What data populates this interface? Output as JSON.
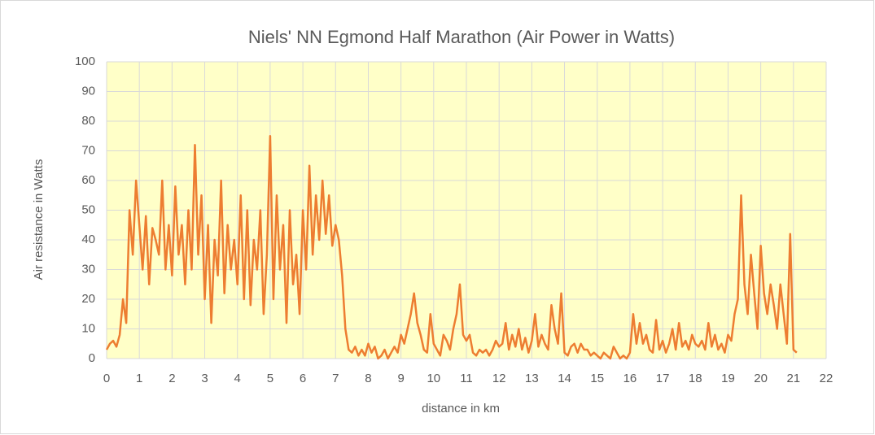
{
  "chart_data": {
    "type": "line",
    "title": "Niels' NN Egmond Half Marathon (Air Power in Watts)",
    "x_label": "distance in km",
    "y_label": "Air resistance in Watts",
    "xlim": [
      0,
      22
    ],
    "xticks": [
      0,
      1,
      2,
      3,
      4,
      5,
      6,
      7,
      8,
      9,
      10,
      11,
      12,
      13,
      14,
      15,
      16,
      17,
      18,
      19,
      20,
      21,
      22
    ],
    "ylim": [
      0,
      100
    ],
    "yticks": [
      0,
      10,
      20,
      30,
      40,
      50,
      60,
      70,
      80,
      90,
      100
    ],
    "grid": true,
    "x": [
      0,
      0.1,
      0.2,
      0.3,
      0.4,
      0.5,
      0.6,
      0.7,
      0.8,
      0.9,
      1,
      1.1,
      1.2,
      1.3,
      1.4,
      1.5,
      1.6,
      1.7,
      1.8,
      1.9,
      2,
      2.1,
      2.2,
      2.3,
      2.4,
      2.5,
      2.6,
      2.7,
      2.8,
      2.9,
      3,
      3.1,
      3.2,
      3.3,
      3.4,
      3.5,
      3.6,
      3.7,
      3.8,
      3.9,
      4,
      4.1,
      4.2,
      4.3,
      4.4,
      4.5,
      4.6,
      4.7,
      4.8,
      4.9,
      5,
      5.1,
      5.2,
      5.3,
      5.4,
      5.5,
      5.6,
      5.7,
      5.8,
      5.9,
      6,
      6.1,
      6.2,
      6.3,
      6.4,
      6.5,
      6.6,
      6.7,
      6.8,
      6.9,
      7,
      7.1,
      7.2,
      7.3,
      7.4,
      7.5,
      7.6,
      7.7,
      7.8,
      7.9,
      8,
      8.1,
      8.2,
      8.3,
      8.4,
      8.5,
      8.6,
      8.7,
      8.8,
      8.9,
      9,
      9.1,
      9.2,
      9.3,
      9.4,
      9.5,
      9.6,
      9.7,
      9.8,
      9.9,
      10,
      10.1,
      10.2,
      10.3,
      10.4,
      10.5,
      10.6,
      10.7,
      10.8,
      10.9,
      11,
      11.1,
      11.2,
      11.3,
      11.4,
      11.5,
      11.6,
      11.7,
      11.8,
      11.9,
      12,
      12.1,
      12.2,
      12.3,
      12.4,
      12.5,
      12.6,
      12.7,
      12.8,
      12.9,
      13,
      13.1,
      13.2,
      13.3,
      13.4,
      13.5,
      13.6,
      13.7,
      13.8,
      13.9,
      14,
      14.1,
      14.2,
      14.3,
      14.4,
      14.5,
      14.6,
      14.7,
      14.8,
      14.9,
      15,
      15.1,
      15.2,
      15.3,
      15.4,
      15.5,
      15.6,
      15.7,
      15.8,
      15.9,
      16,
      16.1,
      16.2,
      16.3,
      16.4,
      16.5,
      16.6,
      16.7,
      16.8,
      16.9,
      17,
      17.1,
      17.2,
      17.3,
      17.4,
      17.5,
      17.6,
      17.7,
      17.8,
      17.9,
      18,
      18.1,
      18.2,
      18.3,
      18.4,
      18.5,
      18.6,
      18.7,
      18.8,
      18.9,
      19,
      19.1,
      19.2,
      19.3,
      19.4,
      19.5,
      19.6,
      19.7,
      19.8,
      19.9,
      20,
      20.1,
      20.2,
      20.3,
      20.4,
      20.5,
      20.6,
      20.7,
      20.8,
      20.9,
      21,
      21.1
    ],
    "series": [
      {
        "color": "#ed7d31",
        "values": [
          3,
          5,
          6,
          4,
          8,
          20,
          12,
          50,
          35,
          60,
          45,
          30,
          48,
          25,
          44,
          40,
          35,
          60,
          30,
          45,
          28,
          58,
          35,
          45,
          25,
          50,
          30,
          72,
          35,
          55,
          20,
          45,
          12,
          40,
          28,
          60,
          22,
          45,
          30,
          40,
          25,
          55,
          20,
          50,
          18,
          40,
          30,
          50,
          15,
          35,
          75,
          20,
          55,
          30,
          45,
          12,
          50,
          25,
          35,
          15,
          50,
          30,
          65,
          35,
          55,
          40,
          60,
          42,
          55,
          38,
          45,
          40,
          28,
          10,
          3,
          2,
          4,
          1,
          3,
          1,
          5,
          2,
          4,
          0,
          1,
          3,
          0,
          2,
          4,
          2,
          8,
          5,
          10,
          15,
          22,
          12,
          8,
          3,
          2,
          15,
          5,
          3,
          1,
          8,
          6,
          3,
          10,
          15,
          25,
          8,
          6,
          8,
          2,
          1,
          3,
          2,
          3,
          1,
          3,
          6,
          4,
          5,
          12,
          3,
          8,
          4,
          10,
          3,
          7,
          2,
          6,
          15,
          4,
          8,
          5,
          3,
          18,
          10,
          5,
          22,
          2,
          1,
          4,
          5,
          2,
          5,
          3,
          3,
          1,
          2,
          1,
          0,
          2,
          1,
          0,
          4,
          2,
          0,
          1,
          0,
          2,
          15,
          5,
          12,
          5,
          8,
          3,
          2,
          13,
          3,
          6,
          2,
          5,
          10,
          3,
          12,
          4,
          6,
          3,
          8,
          5,
          4,
          6,
          3,
          12,
          4,
          8,
          3,
          5,
          2,
          8,
          6,
          15,
          20,
          55,
          25,
          15,
          35,
          22,
          10,
          38,
          22,
          15,
          25,
          18,
          10,
          25,
          15,
          5,
          42,
          3,
          2
        ]
      }
    ]
  }
}
